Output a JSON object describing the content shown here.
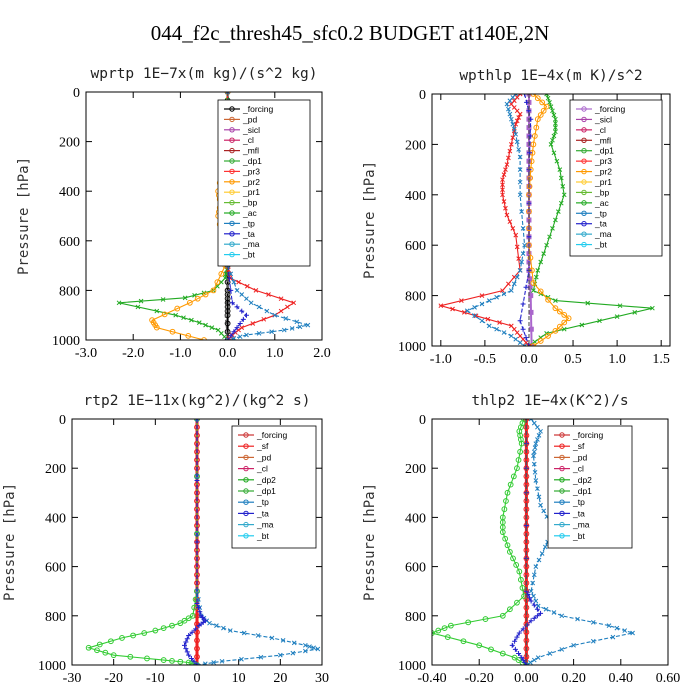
{
  "figure": {
    "title": "044_f2c_thresh45_sfc0.2  BUDGET at140E,2N"
  },
  "chart_data": [
    {
      "type": "line",
      "title": "wprtp   1E−7x(m kg)/(s^2 kg)",
      "ylabel": "Pressure [hPa]",
      "xlim": [
        -3.0,
        2.0
      ],
      "ylim": [
        1000,
        0
      ],
      "xticks": [
        "-3.0",
        "-2.0",
        "-1.0",
        "0.0",
        "1.0",
        "2.0"
      ],
      "yticks": [
        "0",
        "200",
        "400",
        "600",
        "800",
        "1000"
      ],
      "legend": {
        "position": "top-right",
        "entries": [
          "_forcing",
          "_pd",
          "_sicl",
          "_cl",
          "_mfl",
          "_dp1",
          "_pr3",
          "_pr2",
          "_pr1",
          "_bp",
          "_ac",
          "_tp",
          "_ta",
          "_ma",
          "_bt"
        ]
      },
      "series": [
        {
          "name": "_forcing",
          "color": "#000000",
          "marker": "circle",
          "x": [
            0,
            0,
            0,
            0,
            0,
            0,
            0,
            0,
            0,
            0,
            0,
            0
          ],
          "y": [
            0,
            100,
            200,
            300,
            400,
            500,
            600,
            700,
            800,
            850,
            900,
            1000
          ]
        },
        {
          "name": "_ac",
          "color": "#22aa22",
          "marker": "x",
          "x": [
            0,
            0,
            -0.05,
            -0.05,
            -0.05,
            0,
            0,
            -0.05,
            -0.3,
            -0.9,
            -2.3,
            -1.1,
            -0.6,
            -0.2,
            0
          ],
          "y": [
            0,
            100,
            300,
            400,
            500,
            600,
            700,
            750,
            800,
            830,
            850,
            900,
            930,
            960,
            1000
          ]
        },
        {
          "name": "_bp",
          "color": "#ff9900",
          "marker": "circle",
          "x": [
            0,
            -0.1,
            -0.2,
            -0.15,
            -0.2,
            -0.1,
            -0.05,
            -0.3,
            -0.8,
            -1.6,
            -1.5,
            -0.5
          ],
          "y": [
            0,
            300,
            400,
            450,
            500,
            600,
            700,
            800,
            850,
            920,
            950,
            1000
          ]
        },
        {
          "name": "_dp1",
          "color": "#ee2222",
          "marker": "x",
          "x": [
            0,
            0,
            0,
            0.05,
            0.6,
            1.4,
            1.0,
            0.3,
            0.1,
            0
          ],
          "y": [
            0,
            400,
            700,
            750,
            800,
            850,
            900,
            950,
            980,
            1000
          ]
        },
        {
          "name": "_tp",
          "color": "#1f7fbf",
          "marker": "x",
          "x": [
            0,
            0,
            0,
            0.2,
            0.5,
            1.0,
            1.7,
            1.2,
            0.4,
            0
          ],
          "y": [
            0,
            400,
            700,
            800,
            850,
            900,
            940,
            960,
            980,
            1000
          ]
        },
        {
          "name": "_ta",
          "color": "#2222cc",
          "marker": "plus",
          "x": [
            0,
            0,
            0.1,
            0.4,
            0.2,
            0
          ],
          "y": [
            0,
            700,
            850,
            900,
            950,
            1000
          ]
        },
        {
          "name": "_ma",
          "color": "#555555",
          "marker": "none",
          "x": [
            0,
            0,
            -0.05,
            0
          ],
          "y": [
            0,
            800,
            900,
            1000
          ]
        }
      ]
    },
    {
      "type": "line",
      "title": "wpthlp   1E−4x(m K)/s^2",
      "ylabel": "Pressure [hPa]",
      "xlim": [
        -1.1,
        1.6
      ],
      "ylim": [
        1000,
        0
      ],
      "xticks": [
        "-1.0",
        "-0.5",
        "0.0",
        "0.5",
        "1.0",
        "1.5"
      ],
      "yticks": [
        "0",
        "200",
        "400",
        "600",
        "800",
        "1000"
      ],
      "legend": {
        "position": "top-right",
        "entries": [
          "_forcing",
          "_sicl",
          "_cl",
          "_mfl",
          "_dp1",
          "_pr3",
          "_pr2",
          "_pr1",
          "_bp",
          "_ac",
          "_tp",
          "_ta",
          "_ma",
          "_bt"
        ]
      },
      "series": [
        {
          "name": "_forcing",
          "color": "#aa66cc",
          "marker": "square",
          "x": [
            0,
            0,
            0,
            0,
            0,
            0,
            0,
            0,
            0.02,
            0.03
          ],
          "y": [
            0,
            100,
            200,
            300,
            400,
            500,
            600,
            700,
            800,
            1000
          ]
        },
        {
          "name": "_ac",
          "color": "#22aa22",
          "marker": "x",
          "x": [
            0.2,
            0.25,
            0.3,
            0.3,
            0.25,
            0.35,
            0.4,
            0.3,
            0.2,
            0.1,
            0.05,
            0.3,
            1.4,
            0.8,
            0.2,
            0
          ],
          "y": [
            0,
            50,
            100,
            150,
            200,
            300,
            400,
            500,
            600,
            700,
            780,
            820,
            850,
            900,
            950,
            1000
          ]
        },
        {
          "name": "_bp",
          "color": "#ff9900",
          "marker": "circle",
          "x": [
            0.05,
            0.2,
            0.1,
            0.05,
            0.02,
            0,
            0,
            0.05,
            0.3,
            0.45,
            0.3,
            0.05
          ],
          "y": [
            0,
            50,
            100,
            200,
            300,
            400,
            600,
            750,
            850,
            890,
            940,
            1000
          ]
        },
        {
          "name": "_dp1",
          "color": "#ee2222",
          "marker": "x",
          "x": [
            -0.1,
            -0.2,
            -0.1,
            -0.15,
            -0.2,
            -0.25,
            -0.3,
            -0.3,
            -0.25,
            -0.15,
            -0.1,
            -0.3,
            -1.0,
            -0.6,
            -0.2,
            -0.1,
            0
          ],
          "y": [
            0,
            40,
            80,
            120,
            200,
            280,
            340,
            400,
            480,
            560,
            700,
            780,
            840,
            880,
            920,
            960,
            1000
          ]
        },
        {
          "name": "_tp",
          "color": "#1f7fbf",
          "marker": "x",
          "x": [
            -0.15,
            -0.25,
            -0.2,
            -0.15,
            -0.1,
            -0.1,
            -0.05,
            -0.1,
            -0.2,
            -0.45,
            -0.7,
            -0.45,
            -0.2,
            -0.05
          ],
          "y": [
            0,
            40,
            100,
            160,
            250,
            400,
            600,
            700,
            780,
            820,
            860,
            920,
            960,
            1000
          ]
        },
        {
          "name": "_ta",
          "color": "#2222cc",
          "marker": "plus",
          "x": [
            -0.05,
            0.02,
            0,
            0,
            -0.1,
            0
          ],
          "y": [
            0,
            100,
            300,
            700,
            900,
            1000
          ]
        },
        {
          "name": "_ma",
          "color": "#555555",
          "marker": "none",
          "x": [
            0,
            0,
            0,
            0
          ],
          "y": [
            0,
            400,
            800,
            1000
          ]
        }
      ]
    },
    {
      "type": "line",
      "title": "rtp2   1E−11x(kg^2)/(kg^2 s)",
      "ylabel": "Pressure [hPa]",
      "xlim": [
        -30,
        30
      ],
      "ylim": [
        1000,
        0
      ],
      "xticks": [
        "-30",
        "-20",
        "-10",
        "0",
        "10",
        "20",
        "30"
      ],
      "yticks": [
        "0",
        "200",
        "400",
        "600",
        "800",
        "1000"
      ],
      "legend": {
        "position": "top-right",
        "entries": [
          "_forcing",
          "_sf",
          "_pd",
          "_cl",
          "_dp2",
          "_dp1",
          "_tp",
          "_ta",
          "_ma",
          "_bt"
        ]
      },
      "series": [
        {
          "name": "_forcing",
          "color": "#ee2222",
          "marker": "circle",
          "x": [
            0,
            0,
            0,
            0,
            0,
            0,
            0,
            0,
            0,
            0,
            0
          ],
          "y": [
            0,
            100,
            200,
            300,
            400,
            500,
            600,
            700,
            800,
            900,
            1000
          ]
        },
        {
          "name": "_dp1",
          "color": "#33cc33",
          "marker": "circle",
          "x": [
            0,
            0,
            -1,
            -4,
            -10,
            -18,
            -26,
            -20,
            -8,
            -2,
            0
          ],
          "y": [
            0,
            700,
            800,
            830,
            860,
            890,
            930,
            960,
            980,
            990,
            1000
          ]
        },
        {
          "name": "_tp",
          "color": "#1f7fbf",
          "marker": "x",
          "x": [
            0,
            0,
            1,
            3,
            8,
            18,
            26,
            29,
            20,
            6,
            0
          ],
          "y": [
            0,
            700,
            800,
            830,
            860,
            890,
            920,
            935,
            960,
            985,
            1000
          ]
        },
        {
          "name": "_ta",
          "color": "#2222cc",
          "marker": "plus",
          "x": [
            0,
            0,
            1,
            2,
            0.5,
            -2,
            -3,
            -2,
            0
          ],
          "y": [
            0,
            750,
            800,
            820,
            840,
            880,
            920,
            960,
            1000
          ]
        }
      ]
    },
    {
      "type": "line",
      "title": "thlp2   1E−4x(K^2)/s",
      "ylabel": "Pressure [hPa]",
      "xlim": [
        -0.4,
        0.6
      ],
      "ylim": [
        1000,
        0
      ],
      "xticks": [
        "-0.40",
        "-0.20",
        "0.00",
        "0.20",
        "0.40",
        "0.60"
      ],
      "yticks": [
        "0",
        "200",
        "400",
        "600",
        "800",
        "1000"
      ],
      "legend": {
        "position": "top-right",
        "entries": [
          "_forcing",
          "_sf",
          "_pd",
          "_cl",
          "_dp2",
          "_dp1",
          "_tp",
          "_ta",
          "_ma",
          "_bt"
        ]
      },
      "series": [
        {
          "name": "_forcing",
          "color": "#ee2222",
          "marker": "circle",
          "x": [
            0,
            0,
            0,
            0,
            0,
            0,
            0,
            0,
            0,
            0,
            0
          ],
          "y": [
            0,
            100,
            200,
            300,
            400,
            500,
            600,
            700,
            800,
            900,
            1000
          ]
        },
        {
          "name": "_dp1",
          "color": "#33cc33",
          "marker": "circle",
          "x": [
            -0.01,
            -0.03,
            -0.02,
            -0.04,
            -0.08,
            -0.1,
            -0.1,
            -0.07,
            -0.03,
            -0.01,
            -0.1,
            -0.32,
            -0.4,
            -0.2,
            -0.05,
            0
          ],
          "y": [
            0,
            50,
            100,
            200,
            300,
            400,
            460,
            540,
            620,
            720,
            800,
            840,
            870,
            920,
            970,
            1000
          ]
        },
        {
          "name": "_tp",
          "color": "#1f7fbf",
          "marker": "x",
          "x": [
            0.02,
            0.06,
            0.04,
            0.03,
            0.04,
            0.06,
            0.1,
            0.11,
            0.08,
            0.04,
            0.02,
            0.05,
            0.15,
            0.35,
            0.45,
            0.2,
            0.05,
            0
          ],
          "y": [
            0,
            50,
            100,
            150,
            250,
            350,
            420,
            460,
            520,
            600,
            700,
            760,
            800,
            840,
            870,
            920,
            970,
            1000
          ]
        },
        {
          "name": "_ta",
          "color": "#2222cc",
          "marker": "plus",
          "x": [
            0,
            0,
            0,
            0.02,
            0.06,
            0.02,
            -0.03,
            -0.06,
            -0.02,
            0
          ],
          "y": [
            0,
            300,
            700,
            740,
            790,
            820,
            870,
            920,
            970,
            1000
          ]
        },
        {
          "name": "_ma",
          "color": "#555555",
          "marker": "none",
          "x": [
            0,
            0,
            0,
            0
          ],
          "y": [
            0,
            400,
            800,
            1000
          ]
        }
      ]
    }
  ]
}
